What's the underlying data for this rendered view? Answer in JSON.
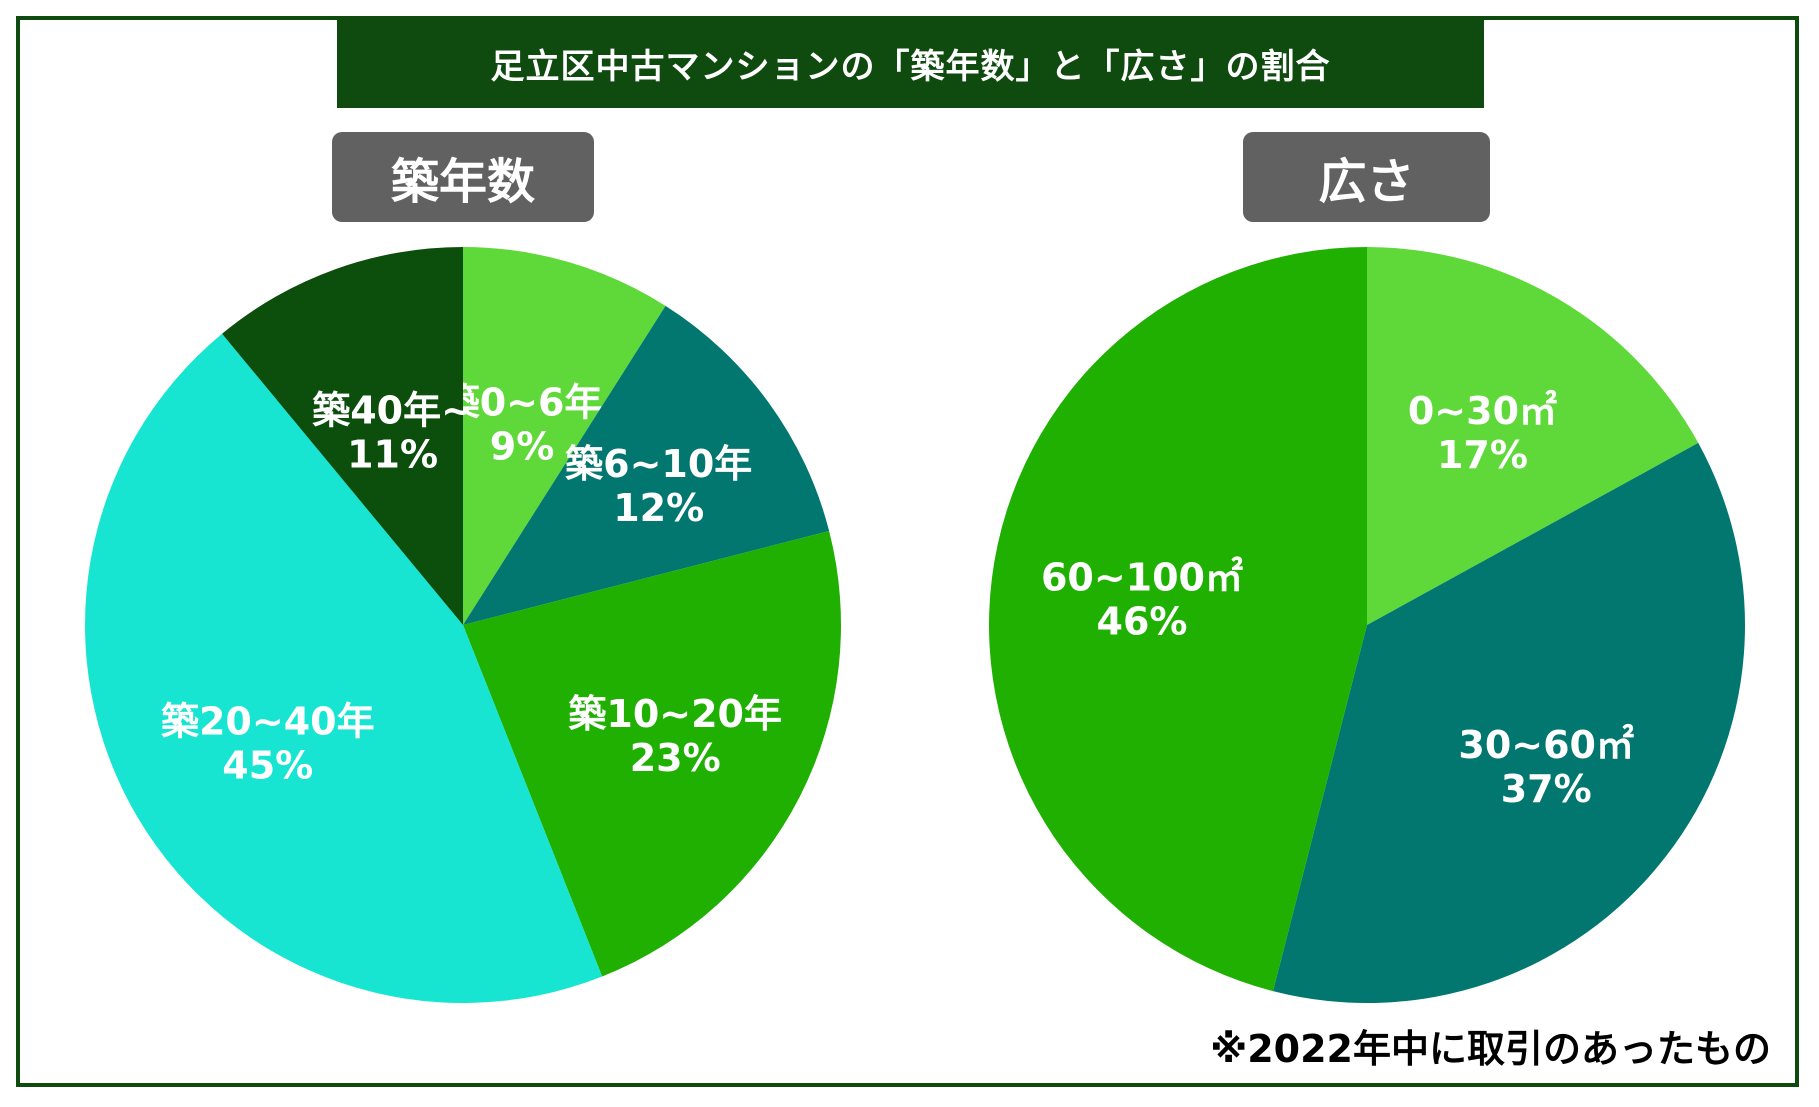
{
  "title": "足立区中古マンションの「築年数」と「広さ」の割合",
  "footnote": "※2022年中に取引のあったもの",
  "colors": {
    "frame": "#0f4a0f",
    "title_bg": "#0f4a0f",
    "label_bg": "#616161",
    "light_green": "#5fd93a",
    "teal": "#01776f",
    "green": "#1fb002",
    "cyan": "#17e5d2",
    "dark_green": "#0c4e0c"
  },
  "chart_data": [
    {
      "type": "pie",
      "title": "築年数",
      "slices": [
        {
          "label": "築0~6年",
          "value": 9,
          "value_label": "9%",
          "color": "#5fd93a"
        },
        {
          "label": "築6~10年",
          "value": 12,
          "value_label": "12%",
          "color": "#01776f"
        },
        {
          "label": "築10~20年",
          "value": 23,
          "value_label": "23%",
          "color": "#1fb002"
        },
        {
          "label": "築20~40年",
          "value": 45,
          "value_label": "45%",
          "color": "#17e5d2"
        },
        {
          "label": "築40年~",
          "value": 11,
          "value_label": "11%",
          "color": "#0c4e0c"
        }
      ]
    },
    {
      "type": "pie",
      "title": "広さ",
      "slices": [
        {
          "label": "0~30㎡",
          "value": 17,
          "value_label": "17%",
          "color": "#5fd93a"
        },
        {
          "label": "30~60㎡",
          "value": 37,
          "value_label": "37%",
          "color": "#01776f"
        },
        {
          "label": "60~100㎡",
          "value": 46,
          "value_label": "46%",
          "color": "#1fb002"
        }
      ]
    }
  ]
}
